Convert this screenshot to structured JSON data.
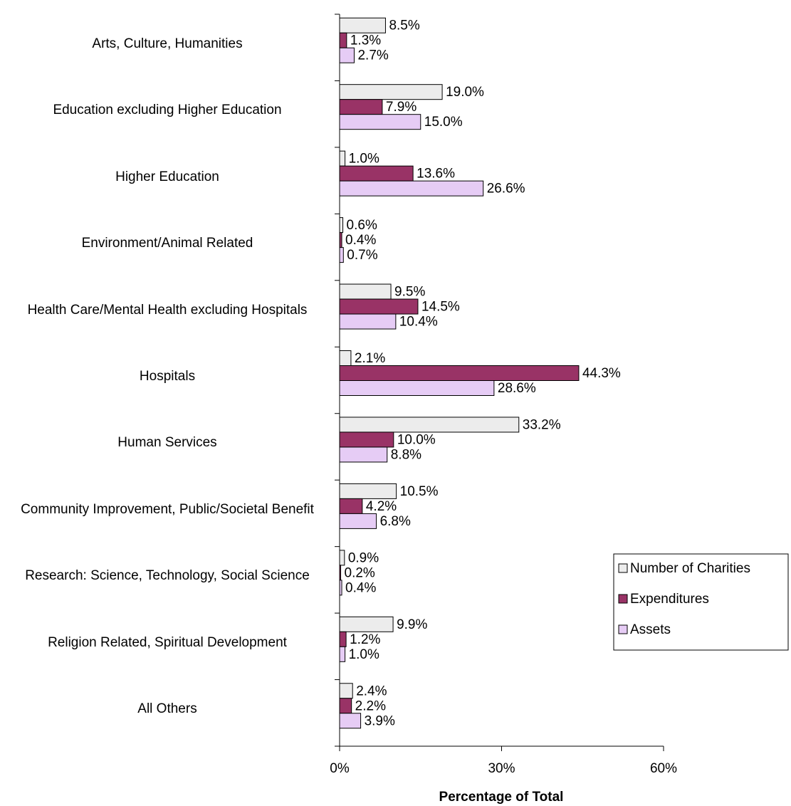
{
  "chart_data": {
    "type": "hbar",
    "x_label": "Percentage of Total",
    "categories": [
      "Arts, Culture, Humanities",
      "Education excluding Higher Education",
      "Higher Education",
      "Environment/Animal Related",
      "Health Care/Mental Health excluding Hospitals",
      "Hospitals",
      "Human Services",
      "Community Improvement, Public/Societal Benefit",
      "Research:  Science, Technology, Social Science",
      "Religion Related, Spiritual Development",
      "All Others"
    ],
    "series": [
      {
        "name": "Number of Charities",
        "color": "#ececec",
        "values": [
          8.5,
          19.0,
          1.0,
          0.6,
          9.5,
          2.1,
          33.2,
          10.5,
          0.9,
          9.9,
          2.4
        ],
        "value_labels": [
          "8.5%",
          "19.0%",
          "1.0%",
          "0.6%",
          "9.5%",
          "2.1%",
          "33.2%",
          "10.5%",
          "0.9%",
          "9.9%",
          "2.4%"
        ]
      },
      {
        "name": "Expenditures",
        "color": "#993366",
        "values": [
          1.3,
          7.9,
          13.6,
          0.4,
          14.5,
          44.3,
          10.0,
          4.2,
          0.2,
          1.2,
          2.2
        ],
        "value_labels": [
          "1.3%",
          "7.9%",
          "13.6%",
          "0.4%",
          "14.5%",
          "44.3%",
          "10.0%",
          "4.2%",
          "0.2%",
          "1.2%",
          "2.2%"
        ]
      },
      {
        "name": "Assets",
        "color": "#e6ccf5",
        "values": [
          2.7,
          15.0,
          26.6,
          0.7,
          10.4,
          28.6,
          8.8,
          6.8,
          0.4,
          1.0,
          3.9
        ],
        "value_labels": [
          "2.7%",
          "15.0%",
          "26.6%",
          "0.7%",
          "10.4%",
          "28.6%",
          "8.8%",
          "6.8%",
          "0.4%",
          "1.0%",
          "3.9%"
        ]
      }
    ],
    "xlim": [
      0,
      60
    ],
    "xticks": [
      {
        "value": 0,
        "label": "0%"
      },
      {
        "value": 30,
        "label": "30%"
      },
      {
        "value": 60,
        "label": "60%"
      }
    ],
    "legend": "right"
  }
}
